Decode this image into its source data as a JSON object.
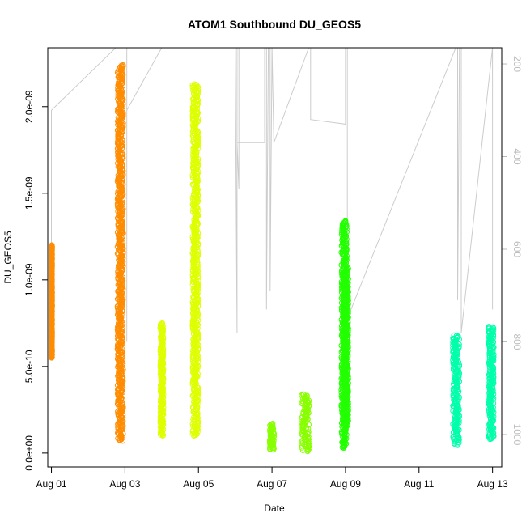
{
  "chart_data": {
    "type": "scatter",
    "title": "ATOM1 Southbound DU_GEOS5",
    "xlabel": "Date",
    "ylabel": "DU_GEOS5",
    "xlim": [
      -0.1,
      12.25
    ],
    "ylim": [
      -8e-11,
      2.34e-09
    ],
    "x_tick_labels": [
      "Aug 01",
      "Aug 03",
      "Aug 05",
      "Aug 07",
      "Aug 09",
      "Aug 11",
      "Aug 13"
    ],
    "x_tick_values": [
      0,
      2,
      4,
      6,
      8,
      10,
      12
    ],
    "y_tick_labels": [
      "0.0e+00",
      "5.0e-10",
      "1.0e-09",
      "1.5e-09",
      "2.0e-09"
    ],
    "y_tick_values": [
      0,
      5e-10,
      1e-09,
      1.5e-09,
      2e-09
    ],
    "secondary_axis": {
      "side": "right",
      "reversed": true,
      "color": "#bbbbbb",
      "ylim": [
        165,
        1070
      ],
      "tick_labels": [
        "200",
        "400",
        "600",
        "800",
        "1000"
      ],
      "tick_values": [
        200,
        400,
        600,
        800,
        1000
      ],
      "line_color": "#cccccc",
      "line_vertices": [
        [
          0.0,
          800
        ],
        [
          0.0,
          300
        ],
        [
          1.75,
          40
        ],
        [
          1.75,
          40
        ],
        [
          2.05,
          40
        ],
        [
          2.05,
          800
        ],
        [
          2.05,
          300
        ],
        [
          3.0,
          40
        ],
        [
          3.05,
          40
        ],
        [
          3.8,
          40
        ],
        [
          3.8,
          40
        ],
        [
          4.2,
          40
        ],
        [
          5.0,
          40
        ],
        [
          5.0,
          40
        ],
        [
          5.05,
          780
        ],
        [
          5.05,
          40
        ],
        [
          5.1,
          40
        ],
        [
          5.1,
          370
        ],
        [
          5.1,
          470
        ],
        [
          5.05,
          370
        ],
        [
          5.7,
          370
        ],
        [
          5.8,
          370
        ],
        [
          5.8,
          40
        ],
        [
          5.85,
          40
        ],
        [
          5.85,
          730
        ],
        [
          5.9,
          40
        ],
        [
          5.95,
          40
        ],
        [
          5.95,
          690
        ],
        [
          6.0,
          40
        ],
        [
          6.0,
          40
        ],
        [
          6.05,
          370
        ],
        [
          7.0,
          40
        ],
        [
          7.05,
          40
        ],
        [
          7.05,
          320
        ],
        [
          8.0,
          330
        ],
        [
          8.0,
          40
        ],
        [
          8.05,
          40
        ],
        [
          8.05,
          750
        ],
        [
          11.0,
          40
        ],
        [
          11.05,
          40
        ],
        [
          11.05,
          710
        ],
        [
          11.1,
          40
        ],
        [
          11.15,
          40
        ],
        [
          11.15,
          780
        ],
        [
          12.0,
          40
        ],
        [
          12.0,
          40
        ],
        [
          12.0,
          730
        ]
      ]
    },
    "series": [
      {
        "color": "#ff8c00",
        "clusters": [
          {
            "x": [
              0.0,
              0.02
            ],
            "ymin": 5.5e-10,
            "ymax": 1.2e-09
          },
          {
            "x": [
              1.78,
              1.97
            ],
            "ymin": 7e-11,
            "ymax": 2.24e-09
          }
        ]
      },
      {
        "color": "#ddff00",
        "clusters": [
          {
            "x": [
              2.95,
              3.06
            ],
            "ymin": 1e-10,
            "ymax": 7.5e-10
          },
          {
            "x": [
              3.82,
              4.02
            ],
            "ymin": 1e-10,
            "ymax": 2.13e-09
          }
        ]
      },
      {
        "color": "#88ff00",
        "clusters": [
          {
            "x": [
              5.92,
              6.07
            ],
            "ymin": 2e-11,
            "ymax": 1.7e-10
          },
          {
            "x": [
              6.78,
              7.05
            ],
            "ymin": 1e-11,
            "ymax": 3.4e-10
          }
        ]
      },
      {
        "color": "#22ff00",
        "clusters": [
          {
            "x": [
              7.95,
              8.09
            ],
            "ymin": 1.6e-10,
            "ymax": 1.07e-09
          },
          {
            "x": [
              7.87,
              8.05
            ],
            "ymin": 3e-11,
            "ymax": 1.34e-09
          }
        ]
      },
      {
        "color": "#00ffaa",
        "clusters": [
          {
            "x": [
              10.9,
              11.12
            ],
            "ymin": 5e-11,
            "ymax": 6.8e-10
          },
          {
            "x": [
              11.88,
              12.05
            ],
            "ymin": 8e-11,
            "ymax": 7.3e-10
          }
        ]
      }
    ]
  }
}
